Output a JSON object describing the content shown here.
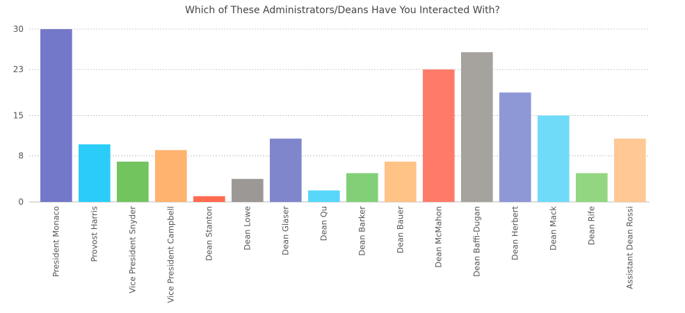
{
  "chart_data": {
    "type": "bar",
    "title": "Which of These Administrators/Deans Have You Interacted With?",
    "xlabel": "",
    "ylabel": "",
    "ylim": [
      0,
      30
    ],
    "yticks": [
      0,
      8,
      15,
      23,
      30
    ],
    "grid": true,
    "legend": "none",
    "categories": [
      "President Monaco",
      "Provost Harris",
      "Vice President Snyder",
      "Vice President Campbell",
      "Dean Stanton",
      "Dean Lowe",
      "Dean Glaser",
      "Dean Qu",
      "Dean Barker",
      "Dean Bauer",
      "Dean McMahon",
      "Dean Baffi-Dugan",
      "Dean Herbert",
      "Dean Mack",
      "Dean Rife",
      "Assistant Dean Rossi"
    ],
    "values": [
      30,
      10,
      7,
      9,
      1,
      4,
      11,
      2,
      5,
      7,
      23,
      26,
      19,
      15,
      5,
      11
    ],
    "colors": [
      "#7478c9",
      "#2bcdf8",
      "#72c45f",
      "#ffb36e",
      "#ff6a50",
      "#9c9895",
      "#8086cc",
      "#58d7fb",
      "#81d078",
      "#ffc386",
      "#ff7b69",
      "#a6a29d",
      "#8e98d7",
      "#70dbf8",
      "#93d682",
      "#ffc894"
    ]
  }
}
